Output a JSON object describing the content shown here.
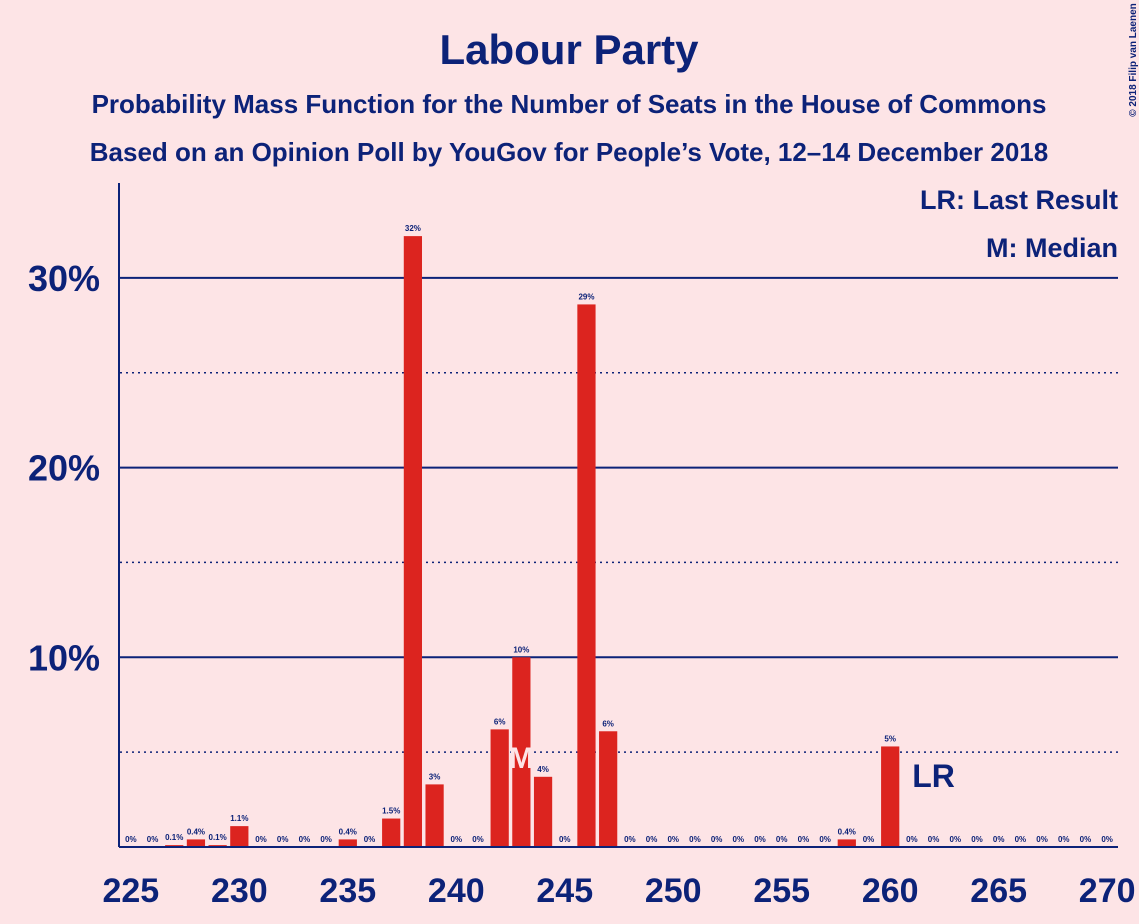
{
  "chart_data": {
    "type": "bar",
    "title": "Labour Party",
    "subtitle": "Probability Mass Function for the Number of Seats in the House of Commons",
    "subtitle2": "Based on an Opinion Poll by YouGov for People’s Vote, 12–14 December 2018",
    "copyright": "© 2018 Filip van Laenen",
    "legend": [
      "LR: Last Result",
      "M: Median"
    ],
    "x": [
      225,
      226,
      227,
      228,
      229,
      230,
      231,
      232,
      233,
      234,
      235,
      236,
      237,
      238,
      239,
      240,
      241,
      242,
      243,
      244,
      245,
      246,
      247,
      248,
      249,
      250,
      251,
      252,
      253,
      254,
      255,
      256,
      257,
      258,
      259,
      260,
      261,
      262,
      263,
      264,
      265,
      266,
      267,
      268,
      269,
      270
    ],
    "values": [
      0,
      0,
      0.1,
      0.4,
      0.1,
      1.1,
      0,
      0,
      0,
      0,
      0.4,
      0,
      1.5,
      32.2,
      3.3,
      0,
      0,
      6.2,
      10.0,
      3.7,
      0,
      28.6,
      6.1,
      0,
      0,
      0,
      0,
      0,
      0,
      0,
      0,
      0,
      0,
      0.4,
      0,
      5.3,
      0,
      0,
      0,
      0,
      0,
      0,
      0,
      0,
      0,
      0
    ],
    "value_labels": [
      "0%",
      "0%",
      "0.1%",
      "0.4%",
      "0.1%",
      "1.1%",
      "0%",
      "0%",
      "0%",
      "0%",
      "0.4%",
      "0%",
      "1.5%",
      "32%",
      "3%",
      "0%",
      "0%",
      "6%",
      "10%",
      "4%",
      "0%",
      "29%",
      "6%",
      "0%",
      "0%",
      "0%",
      "0%",
      "0%",
      "0%",
      "0%",
      "0%",
      "0%",
      "0%",
      "0.4%",
      "0%",
      "5%",
      "0%",
      "0%",
      "0%",
      "0%",
      "0%",
      "0%",
      "0%",
      "0%",
      "0%",
      "0%"
    ],
    "color": "#dc241f",
    "xlim": [
      224.5,
      270.5
    ],
    "xticks": [
      225,
      230,
      235,
      240,
      245,
      250,
      255,
      260,
      265,
      270
    ],
    "ylim": [
      0,
      35
    ],
    "yticks": [
      {
        "value": 10,
        "label": "10%"
      },
      {
        "value": 20,
        "label": "20%"
      },
      {
        "value": 30,
        "label": "30%"
      }
    ],
    "minor_gridlines": [
      5,
      15,
      25
    ],
    "median": {
      "x": 243,
      "label": "M"
    },
    "last_result": {
      "x": 262,
      "label": "LR"
    }
  }
}
